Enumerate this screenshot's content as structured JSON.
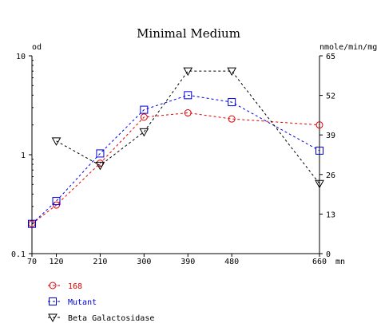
{
  "chart_data": {
    "type": "line",
    "title": "Minimal Medium",
    "x": [
      70,
      120,
      210,
      300,
      390,
      480,
      660
    ],
    "x_tick_labels": [
      "70",
      "120",
      "210",
      "300",
      "390",
      "480",
      "660"
    ],
    "x_unit": "mn",
    "y_left": {
      "label": "od",
      "scale": "log",
      "range": [
        0.1,
        10
      ],
      "tick_labels": [
        "10",
        "1",
        "0.1"
      ],
      "ticks": [
        10,
        1,
        0.1
      ]
    },
    "y_right": {
      "label": "nmole/min/mg",
      "scale": "linear",
      "range": [
        0,
        65
      ],
      "tick_labels": [
        "65",
        "52",
        "39",
        "26",
        "13",
        "0"
      ],
      "ticks": [
        65,
        52,
        39,
        26,
        13,
        0
      ]
    },
    "series": [
      {
        "name": "168",
        "axis": "left",
        "color": "#e00000",
        "marker": "circle",
        "points": [
          [
            70,
            0.2
          ],
          [
            120,
            0.31
          ],
          [
            210,
            0.82
          ],
          [
            300,
            2.4
          ],
          [
            390,
            2.65
          ],
          [
            480,
            2.3
          ],
          [
            660,
            2.0
          ]
        ]
      },
      {
        "name": "Mutant",
        "axis": "left",
        "color": "#0000e0",
        "marker": "square",
        "points": [
          [
            70,
            0.2
          ],
          [
            120,
            0.34
          ],
          [
            210,
            1.03
          ],
          [
            300,
            2.85
          ],
          [
            390,
            4.0
          ],
          [
            480,
            3.4
          ],
          [
            660,
            1.1
          ]
        ]
      },
      {
        "name": "Beta Galactosidase",
        "axis": "right",
        "color": "#000000",
        "marker": "triangle-down",
        "points": [
          [
            120,
            37
          ],
          [
            210,
            29
          ],
          [
            300,
            40
          ],
          [
            390,
            60
          ],
          [
            480,
            60
          ],
          [
            660,
            23
          ]
        ]
      }
    ],
    "legend_position": "bottom-left",
    "grid": false
  }
}
